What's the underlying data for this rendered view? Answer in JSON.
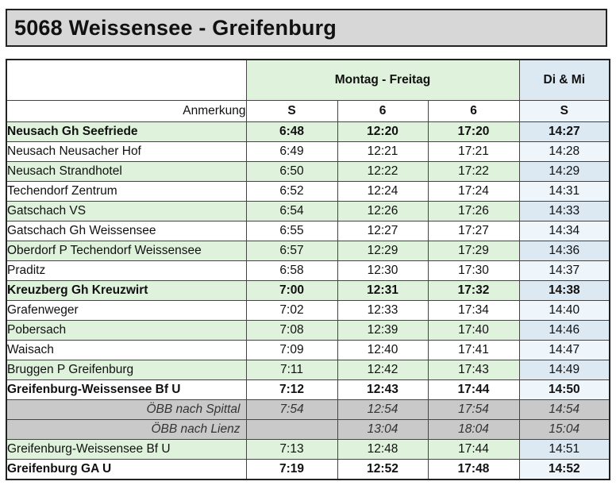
{
  "title": "5068 Weissensee - Greifenburg",
  "header": {
    "days_weekday": "Montag - Freitag",
    "days_dimi": "Di & Mi",
    "remark_label": "Anmerkung",
    "col1": "S",
    "col2": "6",
    "col3": "6",
    "col4": "S"
  },
  "rows": [
    {
      "stop": "Neusach Gh Seefriede",
      "t1": "6:48",
      "t2": "12:20",
      "t3": "17:20",
      "t4": "14:27"
    },
    {
      "stop": "Neusach Neusacher Hof",
      "t1": "6:49",
      "t2": "12:21",
      "t3": "17:21",
      "t4": "14:28"
    },
    {
      "stop": "Neusach Strandhotel",
      "t1": "6:50",
      "t2": "12:22",
      "t3": "17:22",
      "t4": "14:29"
    },
    {
      "stop": "Techendorf Zentrum",
      "t1": "6:52",
      "t2": "12:24",
      "t3": "17:24",
      "t4": "14:31"
    },
    {
      "stop": "Gatschach VS",
      "t1": "6:54",
      "t2": "12:26",
      "t3": "17:26",
      "t4": "14:33"
    },
    {
      "stop": "Gatschach Gh Weissensee",
      "t1": "6:55",
      "t2": "12:27",
      "t3": "17:27",
      "t4": "14:34"
    },
    {
      "stop": "Oberdorf P Techendorf Weissensee",
      "t1": "6:57",
      "t2": "12:29",
      "t3": "17:29",
      "t4": "14:36"
    },
    {
      "stop": "Praditz",
      "t1": "6:58",
      "t2": "12:30",
      "t3": "17:30",
      "t4": "14:37"
    },
    {
      "stop": "Kreuzberg Gh Kreuzwirt",
      "t1": "7:00",
      "t2": "12:31",
      "t3": "17:32",
      "t4": "14:38"
    },
    {
      "stop": "Grafenweger",
      "t1": "7:02",
      "t2": "12:33",
      "t3": "17:34",
      "t4": "14:40"
    },
    {
      "stop": "Pobersach",
      "t1": "7:08",
      "t2": "12:39",
      "t3": "17:40",
      "t4": "14:46"
    },
    {
      "stop": "Waisach",
      "t1": "7:09",
      "t2": "12:40",
      "t3": "17:41",
      "t4": "14:47"
    },
    {
      "stop": "Bruggen P Greifenburg",
      "t1": "7:11",
      "t2": "12:42",
      "t3": "17:43",
      "t4": "14:49"
    },
    {
      "stop": "Greifenburg-Weissensee Bf U",
      "t1": "7:12",
      "t2": "12:43",
      "t3": "17:44",
      "t4": "14:50"
    },
    {
      "stop": "ÖBB nach Spittal",
      "t1": "7:54",
      "t2": "12:54",
      "t3": "17:54",
      "t4": "14:54"
    },
    {
      "stop": "ÖBB nach Lienz",
      "t1": "",
      "t2": "13:04",
      "t3": "18:04",
      "t4": "15:04"
    },
    {
      "stop": "Greifenburg-Weissensee Bf U",
      "t1": "7:13",
      "t2": "12:48",
      "t3": "17:44",
      "t4": "14:51"
    },
    {
      "stop": "Greifenburg GA U",
      "t1": "7:19",
      "t2": "12:52",
      "t3": "17:48",
      "t4": "14:52"
    }
  ]
}
